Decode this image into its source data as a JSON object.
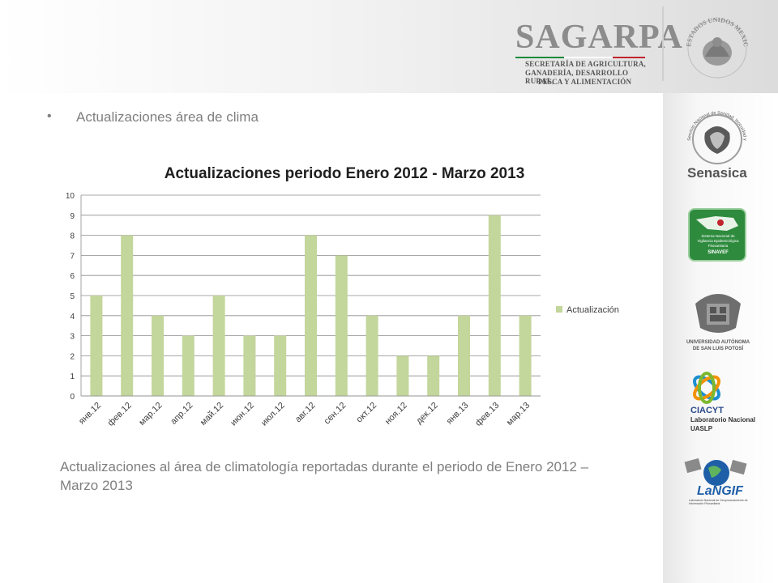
{
  "header": {
    "brand": "SAGARPA",
    "subtitle_lines": [
      "SECRETARÍA DE AGRICULTURA,",
      "GANADERÍA, DESARROLLO RURAL,",
      "PESCA Y ALIMENTACIÓN"
    ],
    "seal_text": "ESTADOS UNIDOS MEXICANOS",
    "colors": {
      "green": "#1a8a3a",
      "white": "#ffffff",
      "red": "#c0262d"
    }
  },
  "slide": {
    "bullet_marker": "•",
    "bullet": "Actualizaciones área de clima",
    "caption": "Actualizaciones al área de climatología reportadas durante el periodo de Enero 2012 – Marzo 2013"
  },
  "sidebar": {
    "logos": [
      {
        "icon": "senasica-logo-icon",
        "label": "Senasica",
        "ring_text": "Servicio Nacional de Sanidad, Inocuidad y Calidad Agroalimentaria"
      },
      {
        "icon": "sinavef-logo-icon",
        "lines": [
          "Sistema Nacional de",
          "Vigilancia Epidemiológica",
          "Fitosanitaria",
          "SINAVEF"
        ]
      },
      {
        "icon": "uaslp-logo-icon",
        "lines": [
          "UNIVERSIDAD AUTÓNOMA",
          "DE SAN LUIS POTOSÍ"
        ]
      },
      {
        "icon": "ciacyt-logo-icon",
        "lines": [
          "CIACYT",
          "Laboratorio Nacional",
          "UASLP"
        ]
      },
      {
        "icon": "langif-logo-icon",
        "label": "LaNGIF",
        "sub": "Laboratorio Nacional de Geoprocesamiento de Información Fitosanitaria"
      }
    ]
  },
  "chart_data": {
    "type": "bar",
    "title": "Actualizaciones periodo Enero 2012 - Marzo 2013",
    "categories": [
      "янв.12",
      "фев.12",
      "мар.12",
      "апр.12",
      "май.12",
      "июн.12",
      "июл.12",
      "авг.12",
      "сен.12",
      "окт.12",
      "ноя.12",
      "дек.12",
      "янв.13",
      "фев.13",
      "мар.13"
    ],
    "series": [
      {
        "name": "Actualización",
        "values": [
          5,
          8,
          4,
          3,
          5,
          3,
          3,
          8,
          7,
          4,
          2,
          2,
          4,
          9,
          4
        ],
        "color": "#c3d69b"
      }
    ],
    "ylim": [
      0,
      10
    ],
    "yticks": [
      0,
      1,
      2,
      3,
      4,
      5,
      6,
      7,
      8,
      9,
      10
    ],
    "grid": true,
    "legend": "right"
  }
}
